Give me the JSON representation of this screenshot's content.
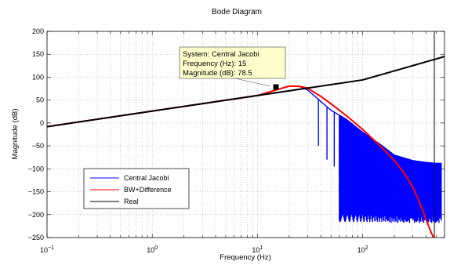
{
  "chart_data": {
    "type": "line",
    "title": "Bode Diagram",
    "xlabel": "Frequency  (Hz)",
    "ylabel": "Magnitude (dB)",
    "xscale": "log",
    "xlim": [
      0.1,
      600
    ],
    "ylim": [
      -250,
      200
    ],
    "grid": "minor-dotted",
    "x_ticks": [
      {
        "value": 0.1,
        "base": "10",
        "exp": "−1"
      },
      {
        "value": 1,
        "base": "10",
        "exp": "0"
      },
      {
        "value": 10,
        "base": "10",
        "exp": "1"
      },
      {
        "value": 100,
        "base": "10",
        "exp": "2"
      }
    ],
    "y_ticks": [
      -250,
      -200,
      -150,
      -100,
      -50,
      0,
      50,
      100,
      150,
      200
    ],
    "legend": {
      "placement": "lower-left",
      "entries": [
        {
          "label": "Central Jacobi",
          "color": "#0000ff"
        },
        {
          "label": "BW+Difference",
          "color": "#ff0000"
        },
        {
          "label": "Real",
          "color": "#000000"
        }
      ]
    },
    "series": [
      {
        "name": "Real",
        "color": "#000000",
        "x": [
          0.1,
          1,
          10,
          100,
          600
        ],
        "y": [
          -8,
          26,
          60,
          94,
          145
        ]
      },
      {
        "name": "BW+Difference",
        "color": "#ff0000",
        "x": [
          0.1,
          1,
          10,
          20,
          25,
          30,
          40,
          50,
          70,
          100,
          150,
          200,
          250,
          300,
          350,
          400,
          450,
          500
        ],
        "y": [
          -8,
          26,
          60,
          80.5,
          80,
          76,
          58,
          42,
          16,
          -14,
          -52,
          -82,
          -110,
          -140,
          -175,
          -210,
          -240,
          -262
        ]
      },
      {
        "name": "Central Jacobi",
        "color": "#0000ff",
        "envelope_x": [
          0.1,
          1,
          10,
          20,
          25,
          30,
          40,
          50,
          70,
          100,
          150,
          200,
          300,
          400,
          500
        ],
        "envelope_y": [
          -8,
          26,
          60,
          80.5,
          80,
          72,
          47,
          28,
          8,
          -20,
          -48,
          -70,
          -82,
          -86,
          -88
        ],
        "floor_y": -208,
        "notch_start_hz": 38,
        "notch_spacing_hz": 7.8,
        "notch_depth_db": [
          -50,
          -80,
          -95,
          -108,
          -118,
          -128,
          -136,
          -143,
          -150,
          -156,
          -162,
          -168,
          -174,
          -180,
          -186,
          -192
        ]
      }
    ],
    "datatip": {
      "x": 15,
      "y": 78.5,
      "lines": [
        "System: Central Jacobi",
        "Frequency (Hz): 15",
        "Magnitude (dB): 78.5"
      ]
    },
    "vertical_marker_hz": 480
  }
}
